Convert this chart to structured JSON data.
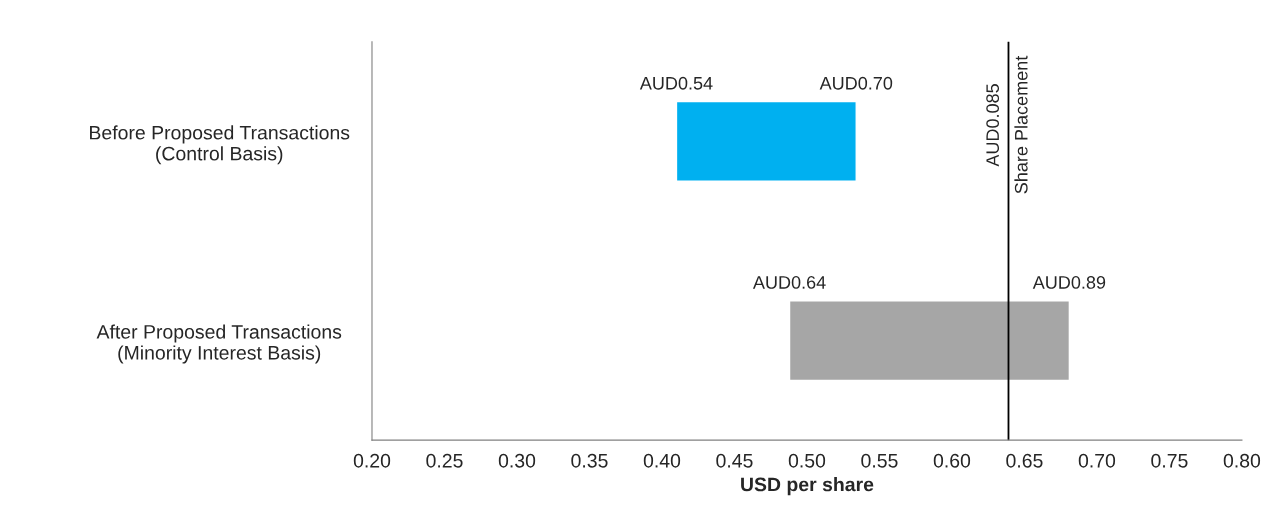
{
  "chart_data": {
    "type": "bar",
    "orientation": "horizontal",
    "xlabel": "USD per share",
    "categories": [
      "Before Proposed Transactions\n(Control Basis)",
      "After Proposed Transactions\n(Minority Interest Basis)"
    ],
    "base": [
      0.41,
      0.488
    ],
    "values": [
      0.124,
      0.193
    ],
    "colors": [
      "#00b0f0",
      "#a6a6a6"
    ],
    "xlim": [
      0.2,
      0.8
    ],
    "xticks": [
      {
        "value": 0.2,
        "label": "0.20"
      },
      {
        "value": 0.25,
        "label": "0.25"
      },
      {
        "value": 0.3,
        "label": "0.30"
      },
      {
        "value": 0.35,
        "label": "0.35"
      },
      {
        "value": 0.4,
        "label": "0.40"
      },
      {
        "value": 0.45,
        "label": "0.45"
      },
      {
        "value": 0.5,
        "label": "0.50"
      },
      {
        "value": 0.55,
        "label": "0.55"
      },
      {
        "value": 0.6,
        "label": "0.60"
      },
      {
        "value": 0.65,
        "label": "0.65"
      },
      {
        "value": 0.7,
        "label": "0.70"
      },
      {
        "value": 0.75,
        "label": "0.75"
      },
      {
        "value": 0.8,
        "label": "0.80"
      }
    ],
    "grid": false,
    "legend": false,
    "ref_lines": [
      {
        "axis": "x",
        "value": 0.639,
        "label": "AUD0.085\nShare Placement",
        "color": "#000000"
      }
    ],
    "annotations": [
      "AUD0.54",
      "AUD0.70",
      "AUD0.64",
      "AUD0.89"
    ]
  }
}
